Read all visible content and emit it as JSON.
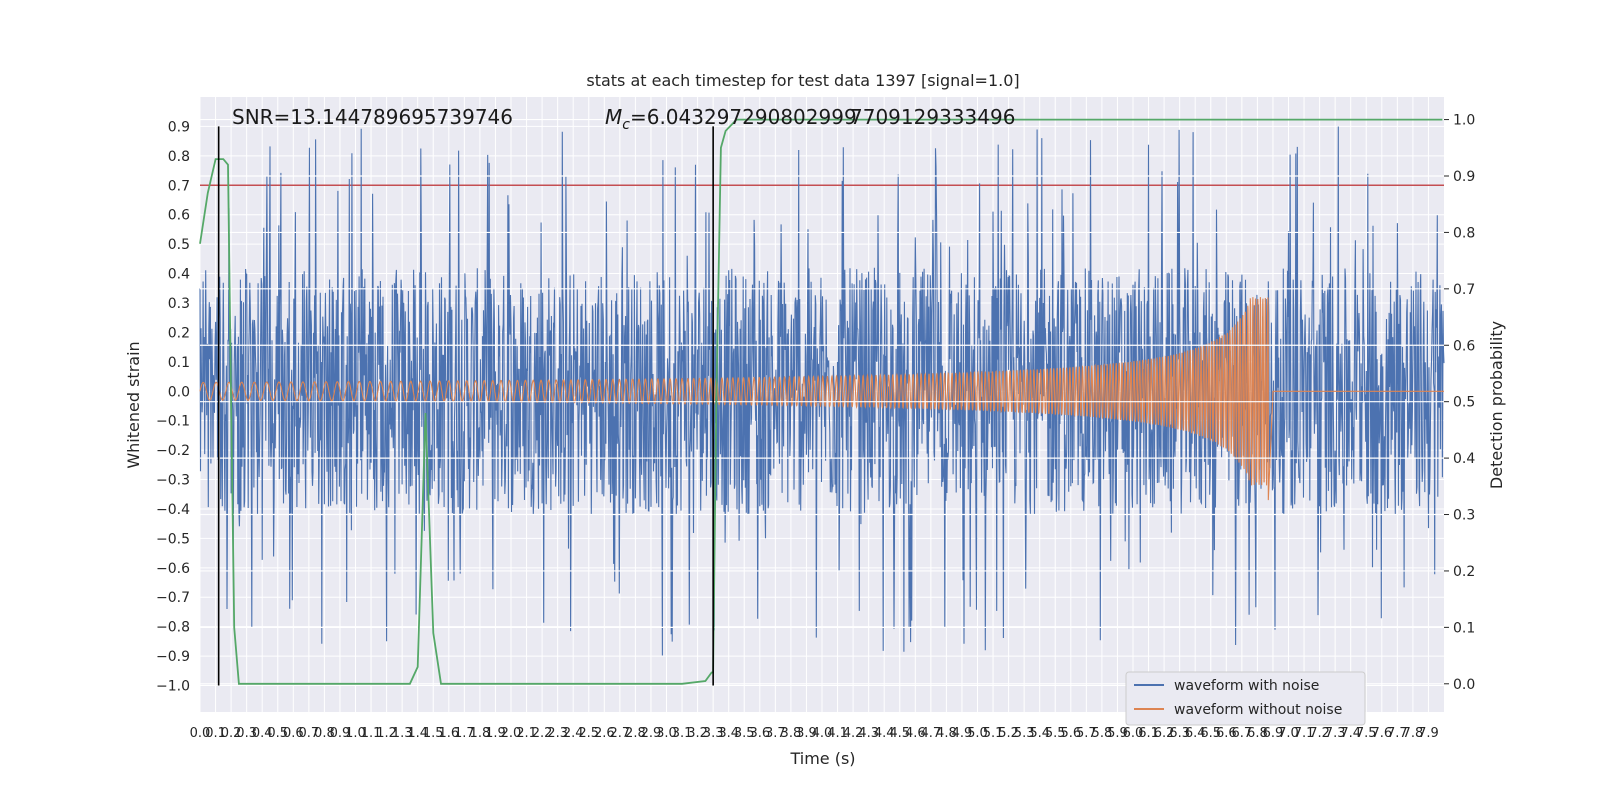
{
  "chart_data": {
    "type": "line",
    "title": "stats at each timestep for test data 1397 [signal=1.0]",
    "xlabel": "Time (s)",
    "ylabel": "Whitened strain",
    "y2label": "Detection probability",
    "xlim": [
      0.0,
      8.0
    ],
    "ylim": [
      -1.09,
      1.0
    ],
    "y2lim": [
      -0.05,
      1.04
    ],
    "xticks": [
      0.0,
      0.1,
      0.2,
      0.3,
      0.4,
      0.5,
      0.6,
      0.7,
      0.8,
      0.9,
      1.0,
      1.1,
      1.2,
      1.3,
      1.4,
      1.5,
      1.6,
      1.7,
      1.8,
      1.9,
      2.0,
      2.1,
      2.2,
      2.3,
      2.4,
      2.5,
      2.6,
      2.7,
      2.8,
      2.9,
      3.0,
      3.1,
      3.2,
      3.3,
      3.4,
      3.5,
      3.6,
      3.7,
      3.8,
      3.9,
      4.0,
      4.1,
      4.2,
      4.3,
      4.4,
      4.5,
      4.6,
      4.7,
      4.8,
      4.9,
      5.0,
      5.1,
      5.2,
      5.3,
      5.4,
      5.5,
      5.6,
      5.7,
      5.8,
      5.9,
      6.0,
      6.1,
      6.2,
      6.3,
      6.4,
      6.5,
      6.6,
      6.7,
      6.8,
      6.9,
      7.0,
      7.1,
      7.2,
      7.3,
      7.4,
      7.5,
      7.6,
      7.7,
      7.8,
      7.9
    ],
    "yticks": [
      0.9,
      0.8,
      0.7,
      0.6,
      0.5,
      0.4,
      0.3,
      0.2,
      0.1,
      0.0,
      -0.1,
      -0.2,
      -0.3,
      -0.4,
      -0.5,
      -0.6,
      -0.7,
      -0.8,
      -0.9,
      -1.0
    ],
    "y2ticks": [
      1.0,
      0.9,
      0.8,
      0.7,
      0.6,
      0.5,
      0.4,
      0.3,
      0.2,
      0.1,
      0.0
    ],
    "grid": true,
    "series": [
      {
        "name": "waveform with noise",
        "color": "#4c72b0",
        "envelope_amplitude": 0.42,
        "peak_amplitude": 0.9
      },
      {
        "name": "waveform without noise",
        "color": "#dd8452",
        "amplitude_start": 0.03,
        "merger_time": 6.87,
        "merger_amplitude_upper": 0.32,
        "merger_amplitude_lower": -0.37,
        "end_time": 6.9
      },
      {
        "name": "detection probability",
        "color": "#55a868",
        "axis": "right",
        "x": [
          0.0,
          0.05,
          0.1,
          0.15,
          0.18,
          0.2,
          0.22,
          0.25,
          1.0,
          1.3,
          1.35,
          1.4,
          1.43,
          1.45,
          1.5,
          1.55,
          2.0,
          3.1,
          3.25,
          3.29,
          3.3,
          3.32,
          3.35,
          3.38,
          3.45,
          7.99
        ],
        "values": [
          0.78,
          0.87,
          0.93,
          0.93,
          0.92,
          0.5,
          0.1,
          0.0,
          0.0,
          0.0,
          0.0,
          0.03,
          0.3,
          0.48,
          0.09,
          0.0,
          0.0,
          0.0,
          0.005,
          0.02,
          0.02,
          0.5,
          0.95,
          0.98,
          1.0,
          1.0
        ]
      }
    ],
    "threshold": {
      "value": 0.7,
      "color": "#c44e52"
    },
    "vlines": [
      0.12,
      3.3
    ],
    "annotations": {
      "snr": "SNR=13.144789695739746",
      "mc_symbol": "M",
      "mc_sub": "c",
      "mc_value_a": "=6.043297290802999",
      "mc_value_b": "7709129333496"
    },
    "legend": {
      "position": "lower-right",
      "items": [
        "waveform with noise",
        "waveform without noise"
      ]
    }
  }
}
